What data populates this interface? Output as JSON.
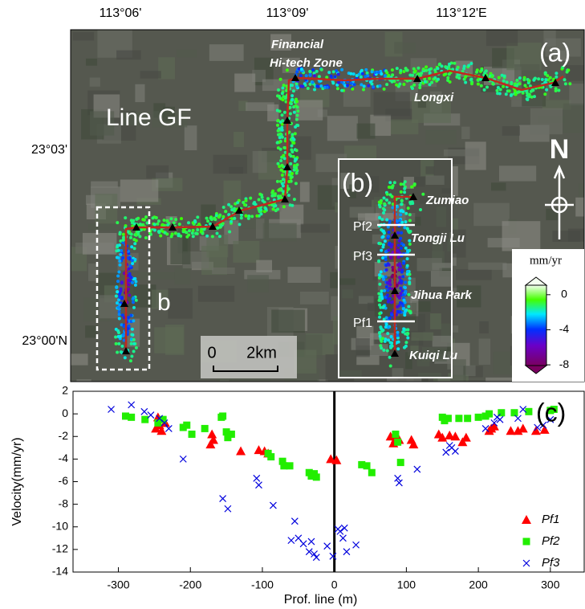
{
  "map": {
    "lon_labels": [
      "113°06'",
      "113°09'",
      "113°12'E"
    ],
    "lat_labels": [
      "23°03'",
      "23°00'N"
    ],
    "panel_label": "(a)",
    "line_label": "Line GF",
    "places": [
      [
        "Financial",
        "Hi-tech Zone"
      ],
      [
        "Longxi"
      ]
    ],
    "box_label": "b",
    "scale": [
      "0",
      "2km"
    ],
    "north": "N",
    "inset": {
      "label": "(b)",
      "stations": [
        "Zumiao",
        "Tongji Lu",
        "Jihua Park",
        "Kuiqi Lu"
      ],
      "profiles": [
        "Pf2",
        "Pf3",
        "Pf1"
      ]
    },
    "colorbar": {
      "label": "mm/yr",
      "lim": [
        2,
        -9
      ],
      "ticks": [
        0,
        -4,
        -8
      ]
    }
  },
  "chart_data": {
    "type": "scatter",
    "annotation": "(c)",
    "x_label": "Prof. line (m)",
    "y_label": "Velocity(mm/yr)",
    "xlim": [
      -363,
      347
    ],
    "ylim": [
      -14,
      2
    ],
    "xticks": [
      -300,
      -200,
      -100,
      0,
      100,
      200,
      300
    ],
    "yticks": [
      2,
      0,
      -2,
      -4,
      -6,
      -8,
      -10,
      -12,
      -14
    ],
    "vline": 0,
    "series": [
      {
        "name": "Pf1",
        "color": "#ff0000",
        "marker": "triangle",
        "x": [
          -245,
          -243,
          -240,
          -235,
          -248,
          -170,
          -168,
          -172,
          -130,
          -105,
          -97,
          -92,
          -5,
          3,
          78,
          82,
          85,
          90,
          107,
          110,
          145,
          150,
          160,
          168,
          178,
          183,
          215,
          218,
          222,
          245,
          255,
          262,
          280,
          292
        ],
        "values": [
          -0.3,
          -1,
          -1.5,
          -0.8,
          -1.3,
          -1.8,
          -2.3,
          -2.7,
          -3.3,
          -3.2,
          -3.3,
          -3.5,
          -4.0,
          -4.1,
          -2.0,
          -2.6,
          -2.2,
          -2.3,
          -2.3,
          -2.7,
          -1.8,
          -2.1,
          -1.9,
          -2.0,
          -2.5,
          -2.1,
          -1.5,
          -1.3,
          -1.1,
          -1.5,
          -1.5,
          -1.3,
          -1.5,
          -1.4
        ]
      },
      {
        "name": "Pf2",
        "color": "#22ee00",
        "marker": "square",
        "x": [
          -290,
          -282,
          -263,
          -245,
          -238,
          -210,
          -205,
          -198,
          -180,
          -157,
          -155,
          -150,
          -148,
          -143,
          -92,
          -88,
          -72,
          -70,
          -62,
          -35,
          -32,
          -28,
          -25,
          38,
          45,
          52,
          85,
          88,
          92,
          150,
          153,
          158,
          173,
          185,
          200,
          210,
          215,
          232,
          250,
          270,
          300,
          305
        ],
        "values": [
          -0.2,
          -0.3,
          -0.5,
          -0.8,
          -0.5,
          -1.2,
          -1.0,
          -1.8,
          -1.3,
          -0.3,
          -0.2,
          -1.6,
          -2.1,
          -1.8,
          -3.5,
          -3.8,
          -4.2,
          -4.6,
          -4.6,
          -5.2,
          -5.5,
          -5.3,
          -5.6,
          -4.5,
          -4.6,
          -5.2,
          -1.8,
          -2.5,
          -4.3,
          -0.3,
          -0.6,
          -0.4,
          -0.4,
          -0.4,
          -0.3,
          -0.2,
          0,
          0.1,
          0.1,
          0.2,
          0.3,
          0.4
        ]
      },
      {
        "name": "Pf3",
        "color": "#0000dd",
        "marker": "cross",
        "x": [
          -310,
          -282,
          -264,
          -255,
          -243,
          -236,
          -230,
          -210,
          -155,
          -148,
          -108,
          -105,
          -85,
          -60,
          -55,
          -50,
          -43,
          -35,
          -32,
          -28,
          -25,
          -10,
          -2,
          5,
          8,
          12,
          14,
          17,
          30,
          88,
          90,
          115,
          155,
          160,
          163,
          168,
          210,
          222,
          226,
          230,
          255,
          262,
          282,
          290,
          300
        ],
        "values": [
          0.4,
          0.8,
          0.2,
          -0.1,
          -0.4,
          -0.8,
          -1.3,
          -4.0,
          -7.5,
          -8.4,
          -5.7,
          -6.3,
          -8.1,
          -11.2,
          -9.5,
          -11.0,
          -11.5,
          -12.2,
          -11.3,
          -12.4,
          -12.7,
          -11.7,
          -12.6,
          -10.2,
          -10.4,
          -11.0,
          -10.1,
          -12.2,
          -11.6,
          -5.7,
          -6.1,
          -4.9,
          -3.4,
          -2.8,
          -3.0,
          -3.3,
          -1.3,
          -0.8,
          -0.3,
          -0.5,
          -0.4,
          0.4,
          -1.2,
          -1.0,
          -0.5
        ]
      }
    ]
  }
}
